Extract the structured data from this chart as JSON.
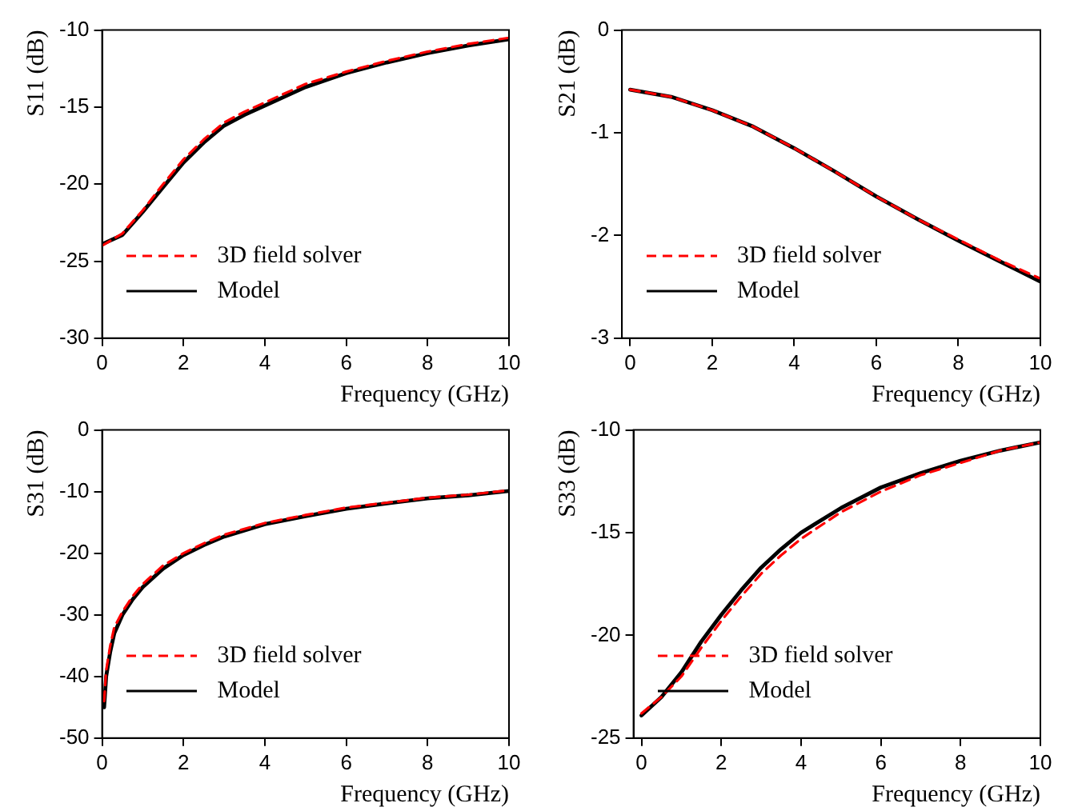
{
  "chart_data": [
    {
      "type": "line",
      "xlabel": "Frequency (GHz)",
      "ylabel": "S11 (dB)",
      "xlim": [
        0,
        10
      ],
      "xticks": [
        0,
        2,
        4,
        6,
        8,
        10
      ],
      "ylim": [
        -30,
        -10
      ],
      "yticks": [
        -30,
        -25,
        -20,
        -15,
        -10
      ],
      "legend": "bottom left",
      "grid": false,
      "marker": "none",
      "x": [
        0,
        0.5,
        1,
        1.5,
        2,
        2.5,
        3,
        3.5,
        4,
        5,
        6,
        7,
        8,
        9,
        10
      ],
      "series": [
        {
          "name": "3D field solver",
          "color": "#ff0000",
          "line_style": "dashed",
          "values": [
            -24.0,
            -23.2,
            -21.7,
            -20.0,
            -18.4,
            -17.1,
            -16.0,
            -15.3,
            -14.7,
            -13.5,
            -12.7,
            -12.0,
            -11.4,
            -10.9,
            -10.5
          ]
        },
        {
          "name": "Model",
          "color": "#000000",
          "line_style": "solid",
          "values": [
            -23.9,
            -23.3,
            -21.8,
            -20.2,
            -18.6,
            -17.3,
            -16.2,
            -15.5,
            -14.9,
            -13.7,
            -12.8,
            -12.1,
            -11.5,
            -11.0,
            -10.6
          ]
        }
      ]
    },
    {
      "type": "line",
      "xlabel": "Frequency (GHz)",
      "ylabel": "S21 (dB)",
      "xlim": [
        -0.2,
        10
      ],
      "xticks": [
        0,
        2,
        4,
        6,
        8,
        10
      ],
      "ylim": [
        -3,
        0
      ],
      "yticks": [
        -3,
        -2,
        -1,
        0
      ],
      "legend": "bottom left",
      "grid": false,
      "marker": "none",
      "x": [
        0,
        1,
        2,
        3,
        4,
        5,
        6,
        7,
        8,
        9,
        10
      ],
      "series": [
        {
          "name": "3D field solver",
          "color": "#ff0000",
          "line_style": "dashed",
          "values": [
            -0.58,
            -0.65,
            -0.78,
            -0.94,
            -1.15,
            -1.38,
            -1.62,
            -1.84,
            -2.04,
            -2.24,
            -2.42
          ]
        },
        {
          "name": "Model",
          "color": "#000000",
          "line_style": "solid",
          "values": [
            -0.58,
            -0.65,
            -0.78,
            -0.94,
            -1.15,
            -1.38,
            -1.62,
            -1.84,
            -2.05,
            -2.25,
            -2.45
          ]
        }
      ]
    },
    {
      "type": "line",
      "xlabel": "Frequency (GHz)",
      "ylabel": "S31 (dB)",
      "xlim": [
        0,
        10
      ],
      "xticks": [
        0,
        2,
        4,
        6,
        8,
        10
      ],
      "ylim": [
        -50,
        0
      ],
      "yticks": [
        -50,
        -40,
        -30,
        -20,
        -10,
        0
      ],
      "legend": "bottom left",
      "grid": false,
      "marker": "none",
      "x": [
        0.05,
        0.1,
        0.2,
        0.3,
        0.5,
        0.75,
        1,
        1.5,
        2,
        2.5,
        3,
        4,
        5,
        6,
        7,
        8,
        9,
        10
      ],
      "series": [
        {
          "name": "3D field solver",
          "color": "#ff0000",
          "line_style": "dashed",
          "values": [
            -44,
            -39,
            -35,
            -32,
            -29.5,
            -27,
            -25,
            -22,
            -20,
            -18.4,
            -17,
            -15.1,
            -13.8,
            -12.6,
            -11.8,
            -11,
            -10.5,
            -9.8
          ]
        },
        {
          "name": "Model",
          "color": "#000000",
          "line_style": "solid",
          "values": [
            -45,
            -40,
            -36,
            -33,
            -30,
            -27.5,
            -25.5,
            -22.5,
            -20.3,
            -18.7,
            -17.3,
            -15.3,
            -14,
            -12.8,
            -11.9,
            -11.1,
            -10.6,
            -9.9
          ]
        }
      ]
    },
    {
      "type": "line",
      "xlabel": "Frequency (GHz)",
      "ylabel": "S33 (dB)",
      "xlim": [
        -0.2,
        10
      ],
      "xticks": [
        0,
        2,
        4,
        6,
        8,
        10
      ],
      "ylim": [
        -25,
        -10
      ],
      "yticks": [
        -25,
        -20,
        -15,
        -10
      ],
      "legend": "bottom left",
      "grid": false,
      "marker": "none",
      "x": [
        0,
        0.5,
        1,
        1.5,
        2,
        2.5,
        3,
        3.5,
        4,
        5,
        6,
        7,
        8,
        9,
        10
      ],
      "series": [
        {
          "name": "3D field solver",
          "color": "#ff0000",
          "line_style": "dashed",
          "values": [
            -23.8,
            -23.0,
            -22.0,
            -20.6,
            -19.3,
            -18.1,
            -17.0,
            -16.1,
            -15.3,
            -14.0,
            -13.0,
            -12.2,
            -11.6,
            -11.0,
            -10.6
          ]
        },
        {
          "name": "Model",
          "color": "#000000",
          "line_style": "solid",
          "values": [
            -23.9,
            -23.0,
            -21.8,
            -20.3,
            -19.0,
            -17.8,
            -16.7,
            -15.8,
            -15.0,
            -13.8,
            -12.8,
            -12.1,
            -11.5,
            -11.0,
            -10.6
          ]
        }
      ]
    }
  ]
}
